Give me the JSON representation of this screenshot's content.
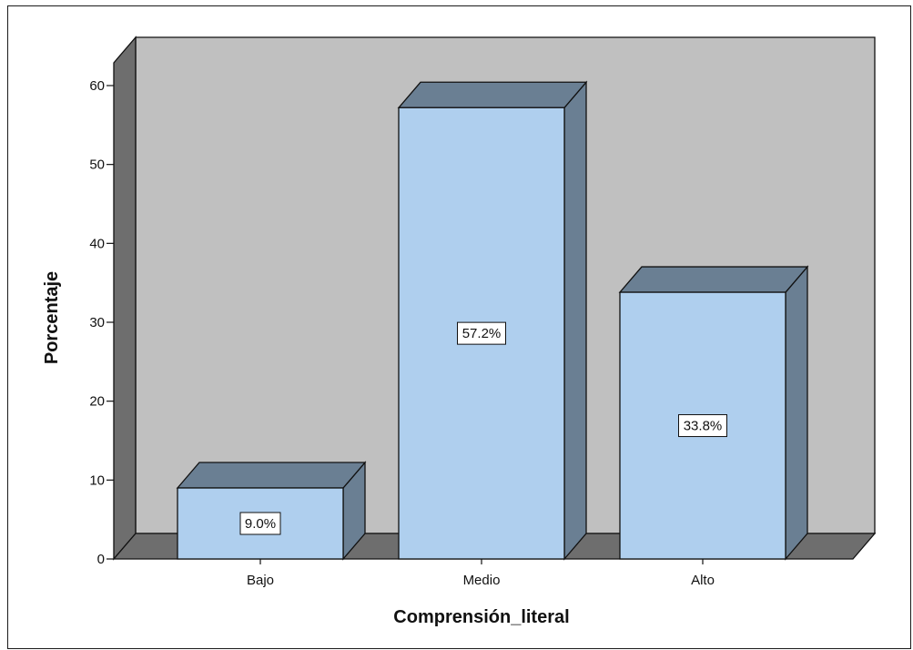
{
  "chart_data": {
    "type": "bar",
    "style": "3d",
    "categories": [
      "Bajo",
      "Medio",
      "Alto"
    ],
    "values": [
      9.0,
      57.2,
      33.8
    ],
    "data_labels": [
      "9.0%",
      "57.2%",
      "33.8%"
    ],
    "xlabel": "Comprensión_literal",
    "ylabel": "Porcentaje",
    "ylim": [
      0,
      60
    ],
    "yticks": [
      0,
      10,
      20,
      30,
      40,
      50,
      60
    ],
    "grid": false,
    "colors": {
      "bar_front": "#afcfee",
      "bar_side": "#6a7f93",
      "wall": "#c0c0c0",
      "floor": "#6e6e6e",
      "outline": "#111111",
      "label_bg": "#ffffff"
    }
  }
}
